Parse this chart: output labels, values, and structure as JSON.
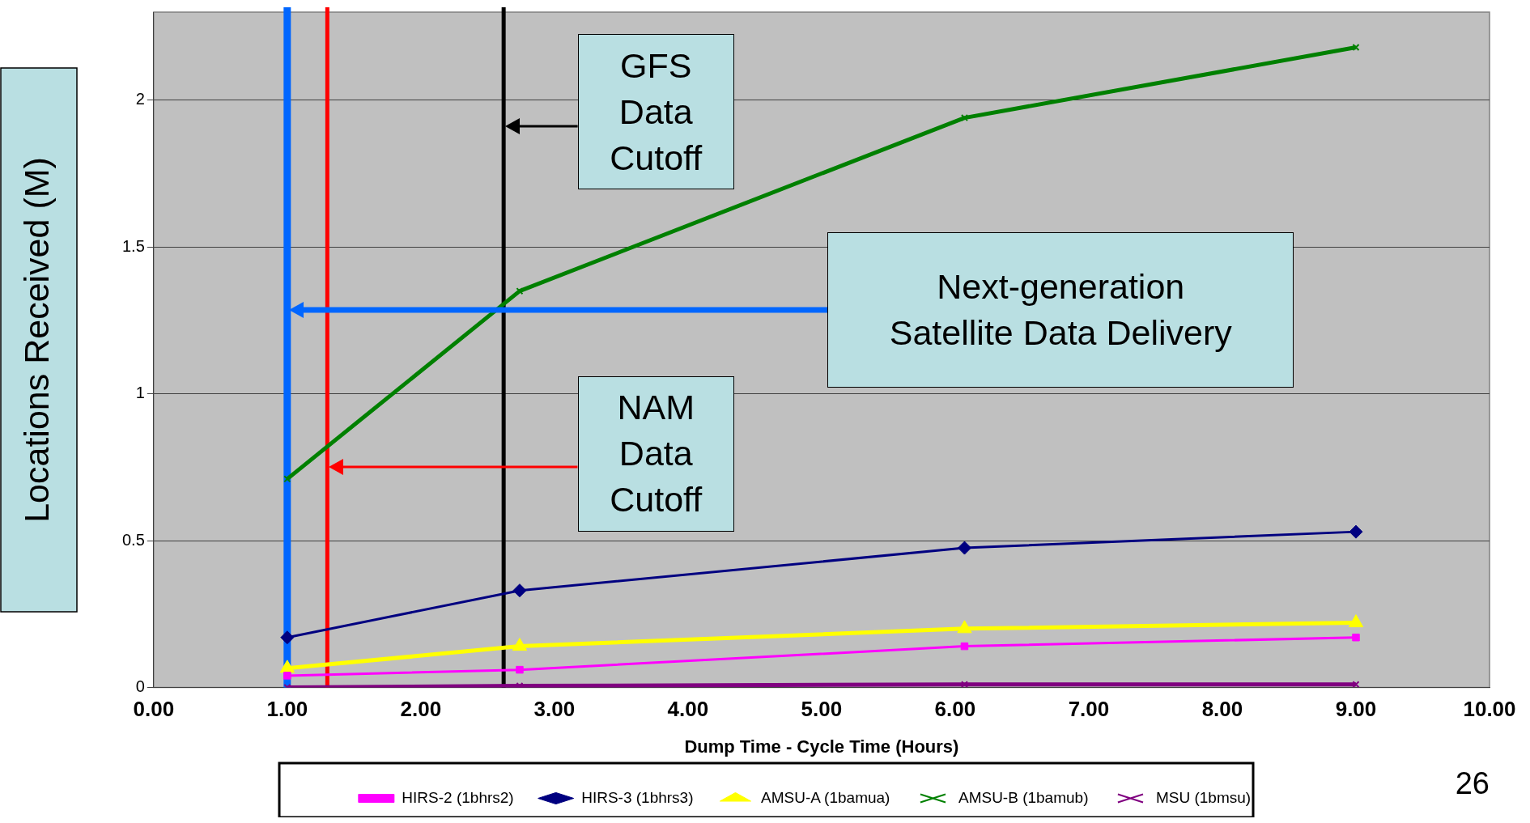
{
  "chart_data": {
    "type": "line",
    "xlabel": "Dump Time - Cycle Time (Hours)",
    "ylabel": "Locations Received (M)",
    "xlim": [
      0,
      10
    ],
    "xticks": [
      {
        "value": 0,
        "label": "0.00"
      },
      {
        "value": 1,
        "label": "1.00"
      },
      {
        "value": 2,
        "label": "2.00"
      },
      {
        "value": 3,
        "label": "3.00"
      },
      {
        "value": 4,
        "label": "4.00"
      },
      {
        "value": 5,
        "label": "5.00"
      },
      {
        "value": 6,
        "label": "6.00"
      },
      {
        "value": 7,
        "label": "7.00"
      },
      {
        "value": 8,
        "label": "8.00"
      },
      {
        "value": 9,
        "label": "9.00"
      },
      {
        "value": 10,
        "label": "10.00"
      }
    ],
    "ylim": [
      0,
      2.3
    ],
    "yticks": [
      0,
      0.5,
      1,
      1.5,
      2
    ],
    "grid": "y",
    "legend": "bottom",
    "x": [
      1.0,
      2.74,
      6.07,
      9.0
    ],
    "series": [
      {
        "name": "HIRS-2 (1bhrs2)",
        "color": "#ff00ff",
        "marker": "square",
        "values": [
          0.04,
          0.06,
          0.14,
          0.17
        ]
      },
      {
        "name": "HIRS-3 (1bhrs3)",
        "color": "#000080",
        "marker": "diamond",
        "values": [
          0.17,
          0.33,
          0.475,
          0.53
        ]
      },
      {
        "name": "AMSU-A (1bamua)",
        "color": "#ffff00",
        "marker": "triangle",
        "values": [
          0.065,
          0.14,
          0.2,
          0.22
        ]
      },
      {
        "name": "AMSU-B (1bamub)",
        "color": "#008000",
        "marker": "cross",
        "values": [
          0.71,
          1.35,
          1.94,
          2.18
        ]
      },
      {
        "name": "MSU (1bmsu)",
        "color": "#800080",
        "marker": "cross",
        "values": [
          0,
          0.005,
          0.01,
          0.01
        ]
      }
    ],
    "ref_lines": [
      {
        "axis": "x",
        "value": 1.0,
        "color": "#0066ff"
      },
      {
        "axis": "x",
        "value": 1.3,
        "color": "#ff0000"
      },
      {
        "axis": "x",
        "value": 2.62,
        "color": "#000000"
      }
    ],
    "annotations": [
      "Next-generation Satellite Data Delivery",
      "NAM Data Cutoff",
      "GFS Data Cutoff",
      "26"
    ]
  }
}
